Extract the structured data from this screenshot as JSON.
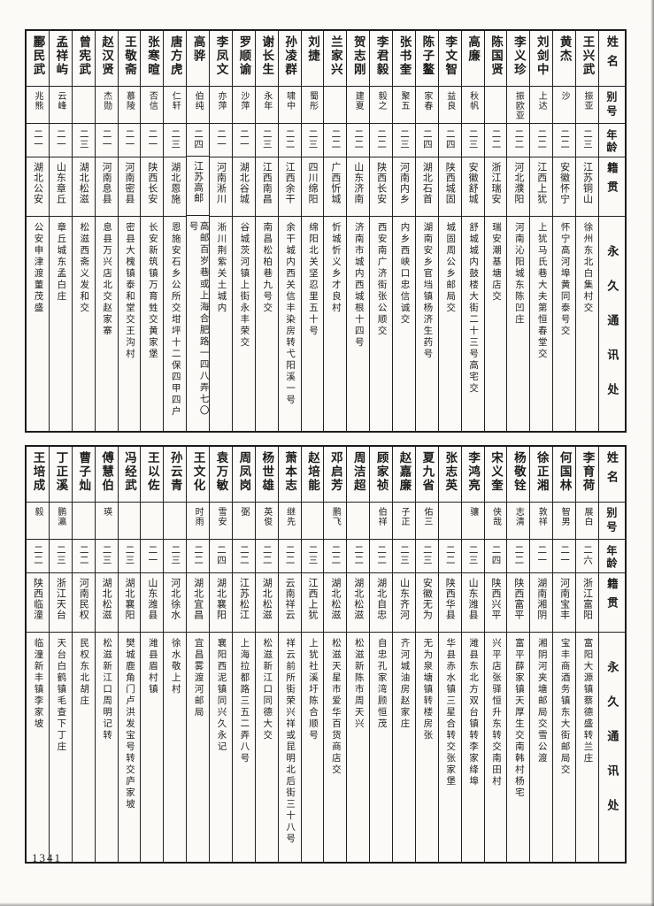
{
  "page": {
    "number": "1341"
  },
  "table_headers": {
    "name": "姓名",
    "alias": "别号",
    "age": "年龄",
    "native_place": "籍贯",
    "address": "永久通讯处"
  },
  "top_table": {
    "people": [
      {
        "name": "王兴武",
        "alias": "振亚",
        "age": "二三",
        "native": "江苏铜山",
        "address": "徐州东北白集村交"
      },
      {
        "name": "黄杰",
        "alias": "沙",
        "age": "二二",
        "native": "安徽怀宁",
        "address": "怀宁高河埠黄同泰号交"
      },
      {
        "name": "刘剑中",
        "alias": "上达",
        "age": "二二",
        "native": "江西上犹",
        "address": "上犹马氏巷大夫第恒春堂交"
      },
      {
        "name": "李义珍",
        "alias": "振欧亚",
        "age": "二二",
        "native": "河北濮阳",
        "address": "河南沁阳城东陈凹庄"
      },
      {
        "name": "陈国贤",
        "alias": "",
        "age": "二二",
        "native": "浙江瑞安",
        "address": "瑞安潮基塘店交"
      },
      {
        "name": "高廉",
        "alias": "秋帆",
        "age": "二三",
        "native": "安徽舒城",
        "address": "舒城城内鼓楼大街二十三号高宅交"
      },
      {
        "name": "李文智",
        "alias": "益良",
        "age": "二四",
        "native": "陕西城固",
        "address": "城固周公乡邮局交"
      },
      {
        "name": "陈子鳌",
        "alias": "家春",
        "age": "二四",
        "native": "湖北石首",
        "address": "湖南安乡官垱镇杨济生药号"
      },
      {
        "name": "张书奎",
        "alias": "聚五",
        "age": "二三",
        "native": "河南内乡",
        "address": "内乡西峡口忠信诚交"
      },
      {
        "name": "李君毅",
        "alias": "毅之",
        "age": "二二",
        "native": "陕西长安",
        "address": "西安南广济街张公顺交"
      },
      {
        "name": "贺志刚",
        "alias": "建夏",
        "age": "二二",
        "native": "山东济南",
        "address": "济南市城内西城根十四号"
      },
      {
        "name": "兰家兴",
        "alias": "",
        "age": "二二",
        "native": "广西忻城",
        "address": "忻城忻义乡才良村"
      },
      {
        "name": "刘捷",
        "alias": "蜀彤",
        "age": "二三",
        "native": "四川绵阳",
        "address": "绵阳北关坚忍里五十号"
      },
      {
        "name": "孙凌群",
        "alias": "啸中",
        "age": "二二",
        "native": "江西余干",
        "address": "余干城内西关信丰染房转弋阳溪一号"
      },
      {
        "name": "谢长生",
        "alias": "永年",
        "age": "二三",
        "native": "江西南昌",
        "address": "南昌松柏巷九号交"
      },
      {
        "name": "罗顺谕",
        "alias": "沙萍",
        "age": "二一",
        "native": "湖北谷城",
        "address": "谷城茨河镇上街永丰荣交"
      },
      {
        "name": "李凤文",
        "alias": "亦萍",
        "age": "二一",
        "native": "河南淅川",
        "address": "淅川荆紫关土城内"
      },
      {
        "name": "高骅",
        "alias": "伯纯",
        "age": "二四",
        "native": "江苏高邮",
        "address": "高邮百岁巷或上海合肥路一四八弄七〇号"
      },
      {
        "name": "唐方虎",
        "alias": "仁轩",
        "age": "二三",
        "native": "湖北恩施",
        "address": "恩施安石乡公所交坩坪十二保四甲四户"
      },
      {
        "name": "张寒暄",
        "alias": "否信",
        "age": "二一",
        "native": "陕西长安",
        "address": "长安新筑镇万育甡交黄家堡"
      },
      {
        "name": "王敬斋",
        "alias": "慕陵",
        "age": "二一",
        "native": "河南密县",
        "address": "密县大槐镇泰和堂交王沟村"
      },
      {
        "name": "赵汉贤",
        "alias": "杰勋",
        "age": "二一",
        "native": "河南息县",
        "address": "息县万兴店北交赵家寨"
      },
      {
        "name": "曾宪武",
        "alias": "",
        "age": "二三",
        "native": "湖北松滋",
        "address": "松滋西斋义发和交"
      },
      {
        "name": "孟祥屿",
        "alias": "云峰",
        "age": "二一",
        "native": "山东章丘",
        "address": "章丘城东孟白庄"
      },
      {
        "name": "酈民武",
        "alias": "兆熊",
        "age": "二一",
        "native": "湖北公安",
        "address": "公安申津渡董茂盛"
      }
    ]
  },
  "bottom_table": {
    "people": [
      {
        "name": "李育荷",
        "alias": "展白",
        "age": "二六",
        "native": "浙江富阳",
        "address": "富阳大源镇蔡德盛转兰庄"
      },
      {
        "name": "何国林",
        "alias": "智男",
        "age": "二一",
        "native": "河南宝丰",
        "address": "宝丰商酒务镇东大街邮局交"
      },
      {
        "name": "徐正湘",
        "alias": "敦祥",
        "age": "二一",
        "native": "湖南湘阴",
        "address": "湘阴河夹塘邮局交雪公渡"
      },
      {
        "name": "杨敬铨",
        "alias": "志清",
        "age": "二二",
        "native": "陕西富平",
        "address": "富平薛家镇天厚生交南韩村杨宅"
      },
      {
        "name": "宋义奎",
        "alias": "侠哉",
        "age": "二四",
        "native": "陕西兴平",
        "address": "兴平店张驿恒升东转交南田村"
      },
      {
        "name": "李鸿亮",
        "alias": "骧",
        "age": "二三",
        "native": "山东潍县",
        "address": "潍县东北方双台镇转李家绛埠"
      },
      {
        "name": "张志英",
        "alias": "",
        "age": "二二",
        "native": "陕西华县",
        "address": "华县赤水镇三星合转交张家堡"
      },
      {
        "name": "夏九省",
        "alias": "佑三",
        "age": "二三",
        "native": "安徽无为",
        "address": "无为泉塘镇转楼房张"
      },
      {
        "name": "赵嘉廉",
        "alias": "子正",
        "age": "二三",
        "native": "山东齐河",
        "address": "齐河城油房赵家庄"
      },
      {
        "name": "顾家祯",
        "alias": "伯祥",
        "age": "二二",
        "native": "湖北自忠",
        "address": "自忠孔家湾顾恒茂"
      },
      {
        "name": "周洁超",
        "alias": "",
        "age": "二二",
        "native": "湖北松滋",
        "address": "松滋新陈市周天兴"
      },
      {
        "name": "邓启芳",
        "alias": "鹏飞",
        "age": "二二",
        "native": "湖北松滋",
        "address": "松滋天星市爱华百货商店交"
      },
      {
        "name": "赵培能",
        "alias": "",
        "age": "二三",
        "native": "江西上犹",
        "address": "上犹社溪圩陈合顺号"
      },
      {
        "name": "萧本志",
        "alias": "继先",
        "age": "二二",
        "native": "云南祥云",
        "address": "祥云前所街荣兴祥或昆明北后街三十八号"
      },
      {
        "name": "杨世雄",
        "alias": "英俊",
        "age": "二二",
        "native": "湖北松滋",
        "address": "松滋新江口同德大交"
      },
      {
        "name": "周凤岗",
        "alias": "弼",
        "age": "二二",
        "native": "江苏松江",
        "address": "上海拉都路三五二弄八号"
      },
      {
        "name": "袁万敏",
        "alias": "雪安",
        "age": "二四",
        "native": "湖北襄阳",
        "address": "襄阳西泥镇同兴久永记"
      },
      {
        "name": "王文化",
        "alias": "时雨",
        "age": "二二",
        "native": "湖北宜昌",
        "address": "宜昌雾渡河邮局"
      },
      {
        "name": "孙云青",
        "alias": "",
        "age": "二三",
        "native": "河北徐水",
        "address": "徐水敬上村"
      },
      {
        "name": "王以佐",
        "alias": "",
        "age": "二一",
        "native": "山东潍县",
        "address": "潍县眉村镇"
      },
      {
        "name": "冯经武",
        "alias": "",
        "age": "二三",
        "native": "湖北襄阳",
        "address": "樊城鹿角门卢洪发宝号转交庐家坡"
      },
      {
        "name": "傅慧伯",
        "alias": "瑛",
        "age": "二三",
        "native": "湖北松滋",
        "address": "松滋新江口周明记转"
      },
      {
        "name": "曹子灿",
        "alias": "",
        "age": "二二",
        "native": "河南民权",
        "address": "民权东北胡庄"
      },
      {
        "name": "丁正溪",
        "alias": "鹏瀛",
        "age": "二三",
        "native": "浙江天台",
        "address": "天台白鹤镇毛查下丁庄"
      },
      {
        "name": "王培成",
        "alias": "毅",
        "age": "二二",
        "native": "陕西临潼",
        "address": "临潼新丰镇李家坡"
      }
    ]
  }
}
